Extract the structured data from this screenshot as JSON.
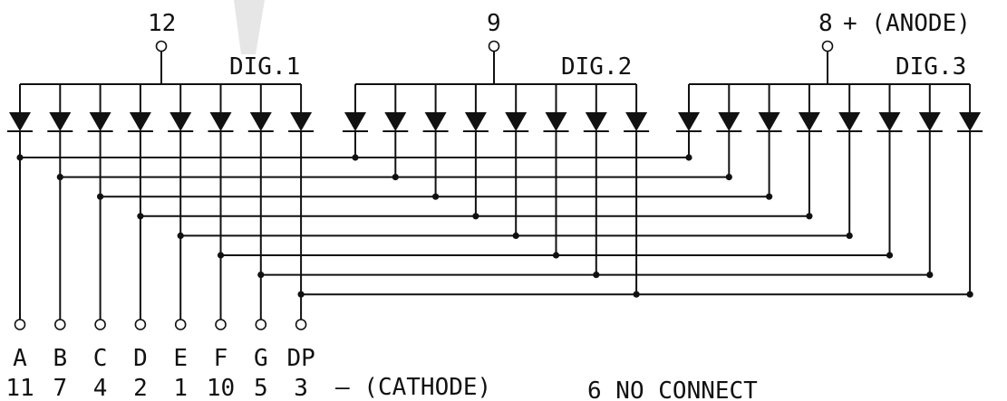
{
  "anodes": [
    {
      "digit": "DIG.1",
      "pin": "12"
    },
    {
      "digit": "DIG.2",
      "pin": "9"
    },
    {
      "digit": "DIG.3",
      "pin": "8"
    }
  ],
  "anode_suffix": "+ (ANODE)",
  "segments": [
    {
      "name": "A",
      "pin": "11"
    },
    {
      "name": "B",
      "pin": "7"
    },
    {
      "name": "C",
      "pin": "4"
    },
    {
      "name": "D",
      "pin": "2"
    },
    {
      "name": "E",
      "pin": "1"
    },
    {
      "name": "F",
      "pin": "10"
    },
    {
      "name": "G",
      "pin": "5"
    },
    {
      "name": "DP",
      "pin": "3"
    }
  ],
  "cathode_label": "– (CATHODE)",
  "note": "6 NO CONNECT"
}
